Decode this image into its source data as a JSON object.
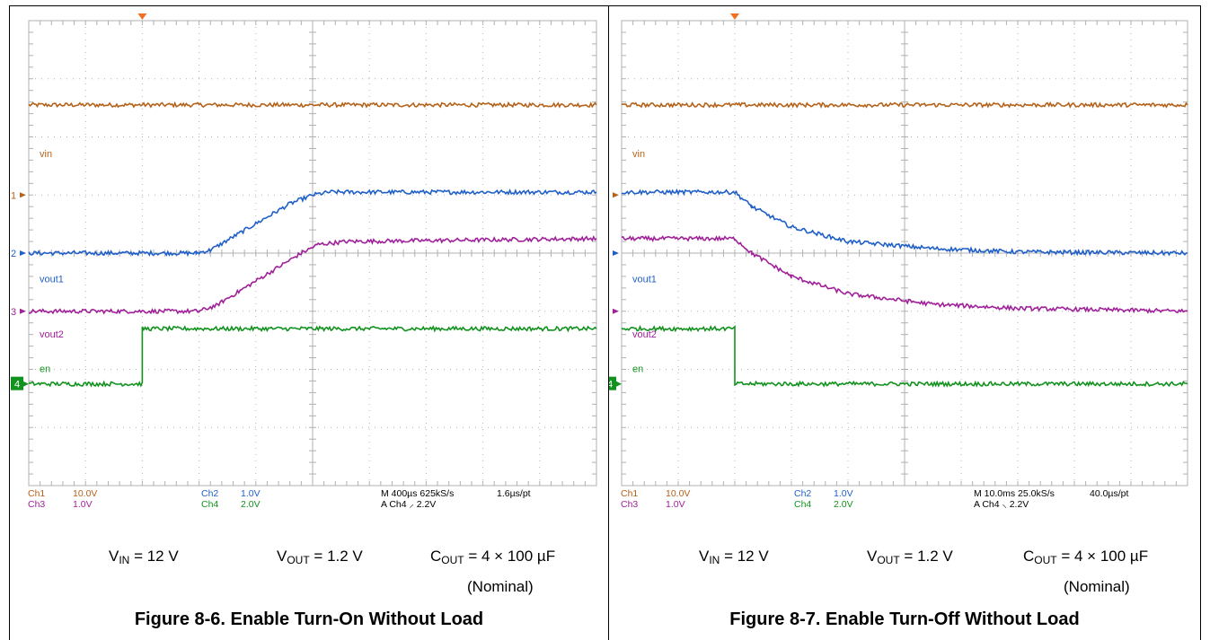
{
  "colors": {
    "ch1": "#b4621a",
    "ch2": "#1f5fc8",
    "ch3": "#a0209a",
    "ch4": "#12921e",
    "grid": "#b0b0b0",
    "trigger_marker": "#f07020"
  },
  "chart_data": [
    {
      "type": "line",
      "title": "Figure 8-6. Enable Turn-On Without Load",
      "x_divisions": 10,
      "y_divisions": 8,
      "conditions": {
        "vin": "12 V",
        "vout": "1.2 V",
        "cout": "4 × 100 µF",
        "nominal": "(Nominal)"
      },
      "channel_labels": [
        "vin",
        "vout1",
        "vout2",
        "en"
      ],
      "ground_markers": [
        "1",
        "2",
        "3",
        "4"
      ],
      "settings": {
        "row1": [
          "Ch1",
          "10.0V",
          "Ch2",
          "1.0V",
          "M 400µs 625kS/s",
          "1.6µs/pt"
        ],
        "row2": [
          "Ch3",
          "1.0V",
          "Ch4",
          "2.0V",
          "A  Ch4  ⸝  2.2V"
        ]
      },
      "series": [
        {
          "name": "vin",
          "color_key": "ch1",
          "points": [
            [
              0,
              6.55
            ],
            [
              10,
              6.55
            ]
          ]
        },
        {
          "name": "vout1",
          "color_key": "ch2",
          "points": [
            [
              0,
              4.0
            ],
            [
              2.95,
              4.0
            ],
            [
              3.2,
              4.05
            ],
            [
              4.6,
              4.85
            ],
            [
              5.0,
              5.0
            ],
            [
              5.3,
              5.05
            ],
            [
              10,
              5.05
            ]
          ]
        },
        {
          "name": "vout2",
          "color_key": "ch3",
          "points": [
            [
              0,
              3.0
            ],
            [
              3.0,
              3.0
            ],
            [
              3.3,
              3.1
            ],
            [
              4.8,
              4.0
            ],
            [
              5.1,
              4.15
            ],
            [
              5.6,
              4.2
            ],
            [
              10,
              4.25
            ]
          ]
        },
        {
          "name": "en",
          "color_key": "ch4",
          "points": [
            [
              0,
              1.75
            ],
            [
              2.0,
              1.75
            ],
            [
              2.0,
              2.7
            ],
            [
              10,
              2.7
            ]
          ]
        }
      ]
    },
    {
      "type": "line",
      "title": "Figure 8-7. Enable Turn-Off Without Load",
      "x_divisions": 10,
      "y_divisions": 8,
      "conditions": {
        "vin": "12 V",
        "vout": "1.2 V",
        "cout": "4 × 100 µF",
        "nominal": "(Nominal)"
      },
      "channel_labels": [
        "vin",
        "vout1",
        "vout2",
        "en"
      ],
      "ground_markers": [
        "1",
        "2",
        "3",
        "4"
      ],
      "settings": {
        "row1": [
          "Ch1",
          "10.0V",
          "Ch2",
          "1.0V",
          "M 10.0ms 25.0kS/s",
          "40.0µs/pt"
        ],
        "row2": [
          "Ch3",
          "1.0V",
          "Ch4",
          "2.0V",
          "A  Ch4  ⸜  2.2V"
        ]
      },
      "series": [
        {
          "name": "vin",
          "color_key": "ch1",
          "points": [
            [
              0,
              6.55
            ],
            [
              10,
              6.55
            ]
          ]
        },
        {
          "name": "vout1",
          "color_key": "ch2",
          "points": [
            [
              0,
              5.05
            ],
            [
              2.0,
              5.05
            ],
            [
              2.3,
              4.8
            ],
            [
              3.0,
              4.45
            ],
            [
              4.0,
              4.2
            ],
            [
              5.5,
              4.08
            ],
            [
              7.0,
              4.02
            ],
            [
              10,
              4.0
            ]
          ]
        },
        {
          "name": "vout2",
          "color_key": "ch3",
          "points": [
            [
              0,
              4.25
            ],
            [
              2.0,
              4.25
            ],
            [
              2.3,
              4.0
            ],
            [
              3.0,
              3.6
            ],
            [
              4.0,
              3.3
            ],
            [
              5.5,
              3.12
            ],
            [
              7.0,
              3.05
            ],
            [
              10,
              3.0
            ]
          ]
        },
        {
          "name": "en",
          "color_key": "ch4",
          "points": [
            [
              0,
              2.7
            ],
            [
              2.0,
              2.7
            ],
            [
              2.0,
              1.75
            ],
            [
              10,
              1.75
            ]
          ]
        }
      ]
    }
  ]
}
